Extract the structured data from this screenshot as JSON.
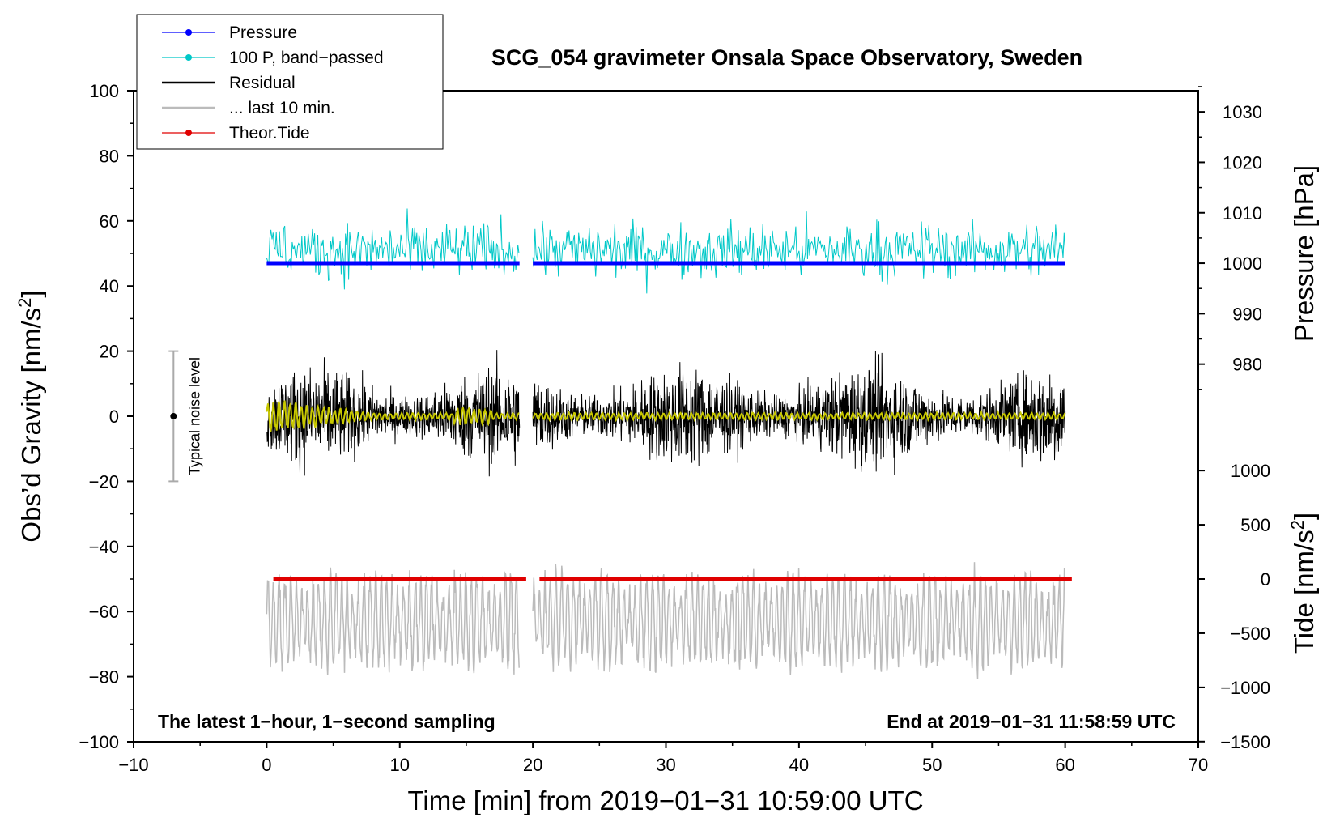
{
  "chart_data": {
    "type": "line",
    "title": "SCG_054 gravimeter Onsala Space Observatory, Sweden",
    "xlabel": "Time [min] from 2019−01−31 10:59:00 UTC",
    "ylabel_left": "Obs’d Gravity [nm/s",
    "ylabel_left_sup": "2",
    "ylabel_left_tail": "]",
    "ylabel_right_pressure": "Pressure [hPa]",
    "ylabel_right_tide": "Tide [nm/s",
    "ylabel_right_tide_sup": "2",
    "ylabel_right_tide_tail": "]",
    "xlim": [
      -10,
      70
    ],
    "ylim_left": [
      -100,
      100
    ],
    "x_ticks": [
      -10,
      0,
      10,
      20,
      30,
      40,
      50,
      60,
      70
    ],
    "x_tick_labels": [
      "−10",
      "0",
      "10",
      "20",
      "30",
      "40",
      "50",
      "60",
      "70"
    ],
    "y_ticks": [
      100,
      80,
      60,
      40,
      20,
      0,
      -20,
      -40,
      -60,
      -80,
      -100
    ],
    "y_tick_labels": [
      "100",
      "80",
      "60",
      "40",
      "20",
      "0",
      "−20",
      "−40",
      "−60",
      "−80",
      "−100"
    ],
    "pressure_axis": {
      "ticks": [
        1030,
        1020,
        1010,
        1000,
        990,
        980
      ],
      "tick_labels": [
        "1030",
        "1020",
        "1010",
        "1000",
        "990",
        "980"
      ],
      "left_value_at_1000": 47,
      "left_units_per_hpa": 1.55
    },
    "tide_axis": {
      "ticks": [
        1000,
        500,
        0,
        -500,
        -1000,
        -1500
      ],
      "tick_labels": [
        "1000",
        "500",
        "0",
        "−500",
        "−1000",
        "−1500"
      ],
      "left_value_at_0": -50,
      "left_units_per_nms2": 0.0333
    },
    "legend": {
      "position": "top-left",
      "entries": [
        {
          "label": "Pressure",
          "color": "#0000ff",
          "style": "line-dot"
        },
        {
          "label": "100 P, band−passed",
          "color": "#00c8c8",
          "style": "line-dot"
        },
        {
          "label": "Residual",
          "color": "#000000",
          "style": "line"
        },
        {
          "label": "... last 10 min.",
          "color": "#bbbbbb",
          "style": "line"
        },
        {
          "label": "Theor.Tide",
          "color": "#e00000",
          "style": "line-dot"
        }
      ]
    },
    "series": [
      {
        "name": "Pressure",
        "color": "#0000ff",
        "unit": "hPa",
        "value": 1000,
        "segments": [
          [
            0,
            19
          ],
          [
            20,
            60
          ]
        ],
        "description": "nearly constant at ~1000 hPa"
      },
      {
        "name": "100 P, band-passed",
        "color": "#00c8c8",
        "offset_left": 47,
        "amplitude_left": 8,
        "segments": [
          [
            0,
            19
          ],
          [
            20,
            60
          ]
        ]
      },
      {
        "name": "Residual",
        "color": "#000000",
        "offset_left": 0,
        "amplitude_left": 14,
        "segments": [
          [
            0,
            19
          ],
          [
            20,
            60
          ]
        ]
      },
      {
        "name": "Residual (smoothed)",
        "color": "#c8c800",
        "offset_left": 0,
        "amplitude_left": 1.5,
        "segments": [
          [
            0,
            19
          ],
          [
            20,
            60
          ]
        ]
      },
      {
        "name": "... last 10 min.",
        "color": "#bbbbbb",
        "offset_left": -63,
        "amplitude_left": 14,
        "segments": [
          [
            0,
            19
          ],
          [
            20,
            60
          ]
        ]
      },
      {
        "name": "Theor.Tide",
        "color": "#e00000",
        "unit": "nm/s2",
        "value": 0,
        "segments": [
          [
            0.5,
            19.5
          ],
          [
            20.5,
            60.5
          ]
        ]
      }
    ],
    "noise_level": {
      "label": "Typical noise level",
      "x": -7,
      "y_center": 0,
      "y_low": -20,
      "y_high": 20,
      "color": "#aaaaaa"
    },
    "annotations": {
      "left": "The latest 1−hour, 1−second sampling",
      "right": "End at 2019−01−31 11:58:59 UTC"
    }
  }
}
